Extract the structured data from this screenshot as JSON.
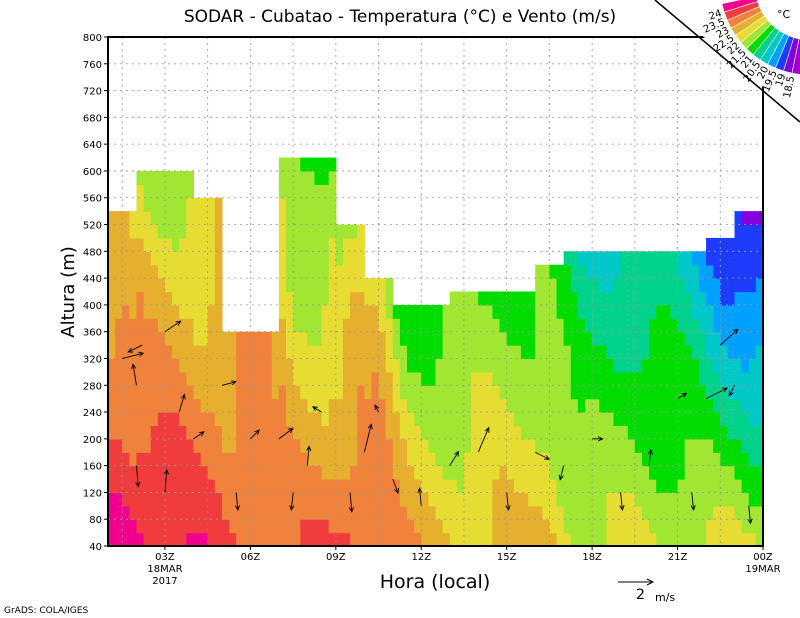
{
  "chart_data": {
    "type": "heatmap",
    "title": "SODAR - Cubatao - Temperatura (°C) e Vento (m/s)",
    "xlabel": "Hora (local)",
    "ylabel": "Altura (m)",
    "xlim_hours": [
      1,
      24
    ],
    "ylim": [
      40,
      800
    ],
    "yticks": [
      40,
      80,
      120,
      160,
      200,
      240,
      280,
      320,
      360,
      400,
      440,
      480,
      520,
      560,
      600,
      640,
      680,
      720,
      760,
      800
    ],
    "xticks": [
      {
        "hour": 3,
        "label": "03Z",
        "sub1": "18MAR",
        "sub2": "2017"
      },
      {
        "hour": 6,
        "label": "06Z"
      },
      {
        "hour": 9,
        "label": "09Z"
      },
      {
        "hour": 12,
        "label": "12Z"
      },
      {
        "hour": 15,
        "label": "15Z"
      },
      {
        "hour": 18,
        "label": "18Z"
      },
      {
        "hour": 21,
        "label": "21Z"
      },
      {
        "hour": 24,
        "label": "00Z",
        "sub1": "19MAR"
      }
    ],
    "grid": true,
    "columns": [
      {
        "hour": 1,
        "top": 540,
        "t_surface": 24.3,
        "t_top": 22.4
      },
      {
        "hour": 2,
        "top": 600,
        "t_surface": 24.2,
        "t_top": 21.8
      },
      {
        "hour": 3,
        "top": 600,
        "t_surface": 24.0,
        "t_top": 21.8
      },
      {
        "hour": 4,
        "top": 560,
        "t_surface": 23.8,
        "t_top": 22.0
      },
      {
        "hour": 5,
        "top": 360,
        "t_surface": 23.5,
        "t_top": 23.0
      },
      {
        "hour": 6,
        "top": 360,
        "t_surface": 23.6,
        "t_top": 23.1
      },
      {
        "hour": 7,
        "top": 620,
        "t_surface": 23.3,
        "t_top": 21.4
      },
      {
        "hour": 8,
        "top": 620,
        "t_surface": 23.5,
        "t_top": 21.0
      },
      {
        "hour": 9,
        "top": 520,
        "t_surface": 23.7,
        "t_top": 21.8
      },
      {
        "hour": 10,
        "top": 440,
        "t_surface": 23.5,
        "t_top": 22.4
      },
      {
        "hour": 11,
        "top": 400,
        "t_surface": 23.0,
        "t_top": 21.2
      },
      {
        "hour": 12,
        "top": 400,
        "t_surface": 22.7,
        "t_top": 21.3
      },
      {
        "hour": 13,
        "top": 420,
        "t_surface": 22.5,
        "t_top": 21.3
      },
      {
        "hour": 14,
        "top": 420,
        "t_surface": 22.6,
        "t_top": 21.5
      },
      {
        "hour": 15,
        "top": 420,
        "t_surface": 22.5,
        "t_top": 21.5
      },
      {
        "hour": 16,
        "top": 460,
        "t_surface": 22.7,
        "t_top": 21.3
      },
      {
        "hour": 17,
        "top": 480,
        "t_surface": 22.0,
        "t_top": 20.5
      },
      {
        "hour": 18,
        "top": 480,
        "t_surface": 22.0,
        "t_top": 20.5
      },
      {
        "hour": 19,
        "top": 480,
        "t_surface": 22.1,
        "t_top": 20.7
      },
      {
        "hour": 20,
        "top": 480,
        "t_surface": 22.0,
        "t_top": 20.5
      },
      {
        "hour": 21,
        "top": 480,
        "t_surface": 22.0,
        "t_top": 20.2
      },
      {
        "hour": 22,
        "top": 500,
        "t_surface": 22.2,
        "t_top": 19.2
      },
      {
        "hour": 23,
        "top": 540,
        "t_surface": 22.0,
        "t_top": 18.6
      }
    ],
    "wind": [
      [
        1.5,
        320,
        1.2,
        0.3
      ],
      [
        2.2,
        340,
        -0.8,
        -0.4
      ],
      [
        3,
        360,
        0.9,
        0.6
      ],
      [
        2,
        280,
        -0.2,
        1.2
      ],
      [
        3.5,
        240,
        0.3,
        1
      ],
      [
        2,
        160,
        0.1,
        -1.2
      ],
      [
        3,
        120,
        0.1,
        1.3
      ],
      [
        4,
        200,
        0.6,
        0.4
      ],
      [
        5,
        280,
        0.8,
        0.2
      ],
      [
        5.5,
        120,
        0.1,
        -1
      ],
      [
        6,
        200,
        0.5,
        0.5
      ],
      [
        7,
        200,
        0.8,
        0.6
      ],
      [
        7.5,
        120,
        -0.1,
        -1
      ],
      [
        8,
        160,
        0.1,
        1.1
      ],
      [
        8.5,
        240,
        -0.5,
        0.3
      ],
      [
        9.5,
        120,
        0.1,
        -1.1
      ],
      [
        10,
        180,
        0.4,
        1.6
      ],
      [
        10.5,
        240,
        -0.2,
        0.4
      ],
      [
        11,
        140,
        0.3,
        -0.8
      ],
      [
        12,
        100,
        -0.1,
        1
      ],
      [
        13,
        160,
        0.5,
        0.8
      ],
      [
        14,
        180,
        0.6,
        1.4
      ],
      [
        15,
        120,
        0.1,
        -1
      ],
      [
        16,
        180,
        0.8,
        -0.4
      ],
      [
        17,
        160,
        -0.2,
        -0.8
      ],
      [
        18,
        200,
        0.6,
        0
      ],
      [
        19,
        120,
        0.1,
        -1
      ],
      [
        20,
        160,
        0.1,
        0.9
      ],
      [
        21,
        260,
        0.5,
        0.3
      ],
      [
        21.5,
        120,
        0.1,
        -1
      ],
      [
        22,
        260,
        1.2,
        0.6
      ],
      [
        22.5,
        340,
        1.0,
        0.9
      ],
      [
        23,
        280,
        -0.3,
        -0.6
      ],
      [
        23.5,
        100,
        0.1,
        -1
      ]
    ],
    "wind_reference": {
      "value": 2,
      "label": "2",
      "unit": "m/s"
    },
    "colorbar": {
      "unit": "°C",
      "levels": [
        "24",
        "23.5",
        "23",
        "22.5",
        "22",
        "21.5",
        "21",
        "20.5",
        "20",
        "19.5",
        "19",
        "18.5"
      ],
      "colors": [
        "#f0008c",
        "#f03c3c",
        "#f0823c",
        "#e6af2d",
        "#e6dc32",
        "#a0e632",
        "#00dc00",
        "#00d28c",
        "#00c8c8",
        "#00a0ff",
        "#1e3cff",
        "#8200dc",
        "#a000c8"
      ]
    }
  },
  "footer": {
    "credit": "GrADS: COLA/IGES"
  }
}
